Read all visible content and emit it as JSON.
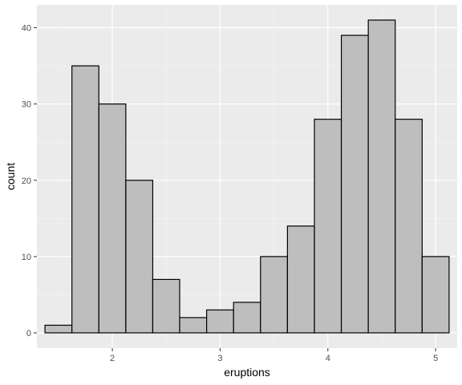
{
  "chart_data": {
    "type": "bar",
    "subtype": "histogram",
    "xlabel": "eruptions",
    "ylabel": "count",
    "xlim": [
      1.3,
      5.2
    ],
    "ylim": [
      -2,
      43
    ],
    "x_ticks": [
      2,
      3,
      4,
      5
    ],
    "x_tick_labels": [
      "2",
      "3",
      "4",
      "5"
    ],
    "y_ticks": [
      0,
      10,
      20,
      30,
      40
    ],
    "y_tick_labels": [
      "0",
      "10",
      "20",
      "30",
      "40"
    ],
    "bins": [
      {
        "x0": 1.375,
        "x1": 1.625,
        "count": 1
      },
      {
        "x0": 1.625,
        "x1": 1.875,
        "count": 35
      },
      {
        "x0": 1.875,
        "x1": 2.125,
        "count": 30
      },
      {
        "x0": 2.125,
        "x1": 2.375,
        "count": 20
      },
      {
        "x0": 2.375,
        "x1": 2.625,
        "count": 7
      },
      {
        "x0": 2.625,
        "x1": 2.875,
        "count": 2
      },
      {
        "x0": 2.875,
        "x1": 3.125,
        "count": 3
      },
      {
        "x0": 3.125,
        "x1": 3.375,
        "count": 4
      },
      {
        "x0": 3.375,
        "x1": 3.625,
        "count": 10
      },
      {
        "x0": 3.625,
        "x1": 3.875,
        "count": 14
      },
      {
        "x0": 3.875,
        "x1": 4.125,
        "count": 28
      },
      {
        "x0": 4.125,
        "x1": 4.375,
        "count": 39
      },
      {
        "x0": 4.375,
        "x1": 4.625,
        "count": 41
      },
      {
        "x0": 4.625,
        "x1": 4.875,
        "count": 28
      },
      {
        "x0": 4.875,
        "x1": 5.125,
        "count": 10
      }
    ],
    "grid": true,
    "colors": {
      "panel_background": "#ebebeb",
      "grid_major": "#ffffff",
      "grid_minor": "#f5f5f5",
      "bar_fill": "#bebebe",
      "bar_outline": "#000000"
    }
  }
}
